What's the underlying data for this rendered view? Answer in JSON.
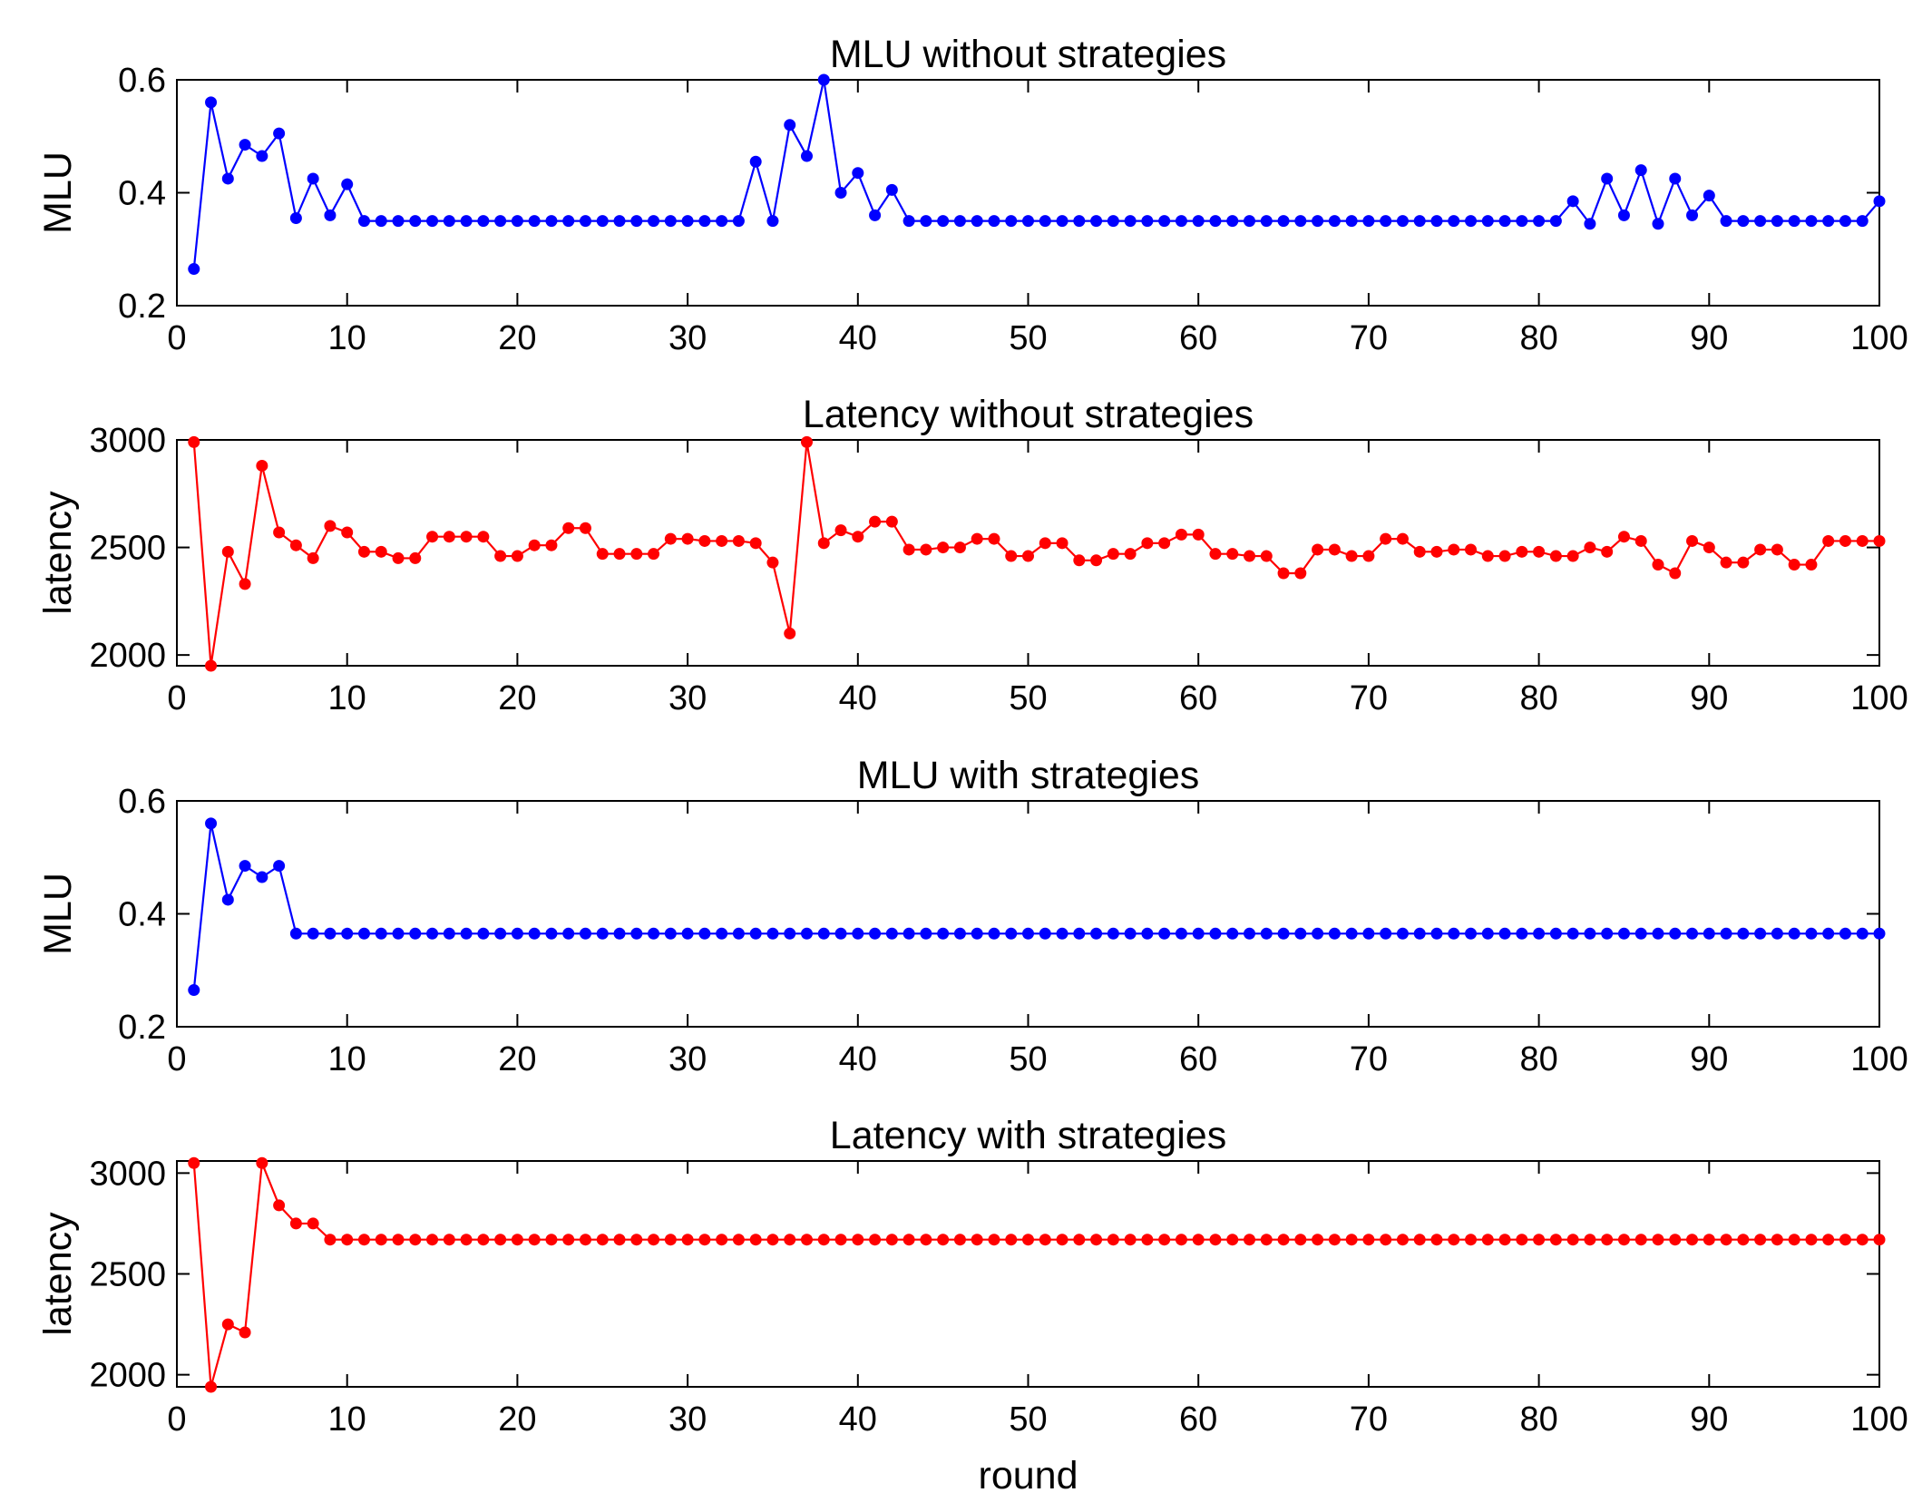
{
  "chart_data": [
    {
      "type": "line",
      "title": "MLU without strategies",
      "xlabel": "",
      "ylabel": "MLU",
      "xlim": [
        0,
        100
      ],
      "ylim": [
        0.2,
        0.6
      ],
      "xticks": [
        0,
        10,
        20,
        30,
        40,
        50,
        60,
        70,
        80,
        90,
        100
      ],
      "yticks": [
        0.2,
        0.4,
        0.6
      ],
      "grid": false,
      "series": [
        {
          "color": "#0000ff",
          "marker": "dot",
          "x": [
            1,
            2,
            3,
            4,
            5,
            6,
            7,
            8,
            9,
            10,
            11,
            12,
            13,
            14,
            15,
            16,
            17,
            18,
            19,
            20,
            21,
            22,
            23,
            24,
            25,
            26,
            27,
            28,
            29,
            30,
            31,
            32,
            33,
            34,
            35,
            36,
            37,
            38,
            39,
            40,
            41,
            42,
            43,
            44,
            45,
            46,
            47,
            48,
            49,
            50,
            51,
            52,
            53,
            54,
            55,
            56,
            57,
            58,
            59,
            60,
            61,
            62,
            63,
            64,
            65,
            66,
            67,
            68,
            69,
            70,
            71,
            72,
            73,
            74,
            75,
            76,
            77,
            78,
            79,
            80,
            81,
            82,
            83,
            84,
            85,
            86,
            87,
            88,
            89,
            90,
            91,
            92,
            93,
            94,
            95,
            96,
            97,
            98,
            99,
            100
          ],
          "y": [
            0.265,
            0.56,
            0.425,
            0.485,
            0.465,
            0.505,
            0.355,
            0.425,
            0.36,
            0.415,
            0.35,
            0.35,
            0.35,
            0.35,
            0.35,
            0.35,
            0.35,
            0.35,
            0.35,
            0.35,
            0.35,
            0.35,
            0.35,
            0.35,
            0.35,
            0.35,
            0.35,
            0.35,
            0.35,
            0.35,
            0.35,
            0.35,
            0.35,
            0.455,
            0.35,
            0.52,
            0.465,
            0.6,
            0.4,
            0.435,
            0.36,
            0.405,
            0.35,
            0.35,
            0.35,
            0.35,
            0.35,
            0.35,
            0.35,
            0.35,
            0.35,
            0.35,
            0.35,
            0.35,
            0.35,
            0.35,
            0.35,
            0.35,
            0.35,
            0.35,
            0.35,
            0.35,
            0.35,
            0.35,
            0.35,
            0.35,
            0.35,
            0.35,
            0.35,
            0.35,
            0.35,
            0.35,
            0.35,
            0.35,
            0.35,
            0.35,
            0.35,
            0.35,
            0.35,
            0.35,
            0.35,
            0.385,
            0.345,
            0.425,
            0.36,
            0.44,
            0.345,
            0.425,
            0.36,
            0.395,
            0.35,
            0.35,
            0.35,
            0.35,
            0.35,
            0.35,
            0.35,
            0.35,
            0.35,
            0.385
          ]
        }
      ]
    },
    {
      "type": "line",
      "title": "Latency without strategies",
      "xlabel": "",
      "ylabel": "latency",
      "xlim": [
        0,
        100
      ],
      "ylim": [
        1950,
        3000
      ],
      "xticks": [
        0,
        10,
        20,
        30,
        40,
        50,
        60,
        70,
        80,
        90,
        100
      ],
      "yticks": [
        2000,
        2500,
        3000
      ],
      "grid": false,
      "series": [
        {
          "color": "#ff0000",
          "marker": "dot",
          "x": [
            1,
            2,
            3,
            4,
            5,
            6,
            7,
            8,
            9,
            10,
            11,
            12,
            13,
            14,
            15,
            16,
            17,
            18,
            19,
            20,
            21,
            22,
            23,
            24,
            25,
            26,
            27,
            28,
            29,
            30,
            31,
            32,
            33,
            34,
            35,
            36,
            37,
            38,
            39,
            40,
            41,
            42,
            43,
            44,
            45,
            46,
            47,
            48,
            49,
            50,
            51,
            52,
            53,
            54,
            55,
            56,
            57,
            58,
            59,
            60,
            61,
            62,
            63,
            64,
            65,
            66,
            67,
            68,
            69,
            70,
            71,
            72,
            73,
            74,
            75,
            76,
            77,
            78,
            79,
            80,
            81,
            82,
            83,
            84,
            85,
            86,
            87,
            88,
            89,
            90,
            91,
            92,
            93,
            94,
            95,
            96,
            97,
            98,
            99,
            100
          ],
          "y": [
            2990,
            1950,
            2480,
            2330,
            2880,
            2570,
            2510,
            2450,
            2600,
            2570,
            2480,
            2480,
            2450,
            2450,
            2550,
            2550,
            2550,
            2550,
            2460,
            2460,
            2510,
            2510,
            2590,
            2590,
            2470,
            2470,
            2470,
            2470,
            2540,
            2540,
            2530,
            2530,
            2530,
            2520,
            2430,
            2100,
            2990,
            2520,
            2580,
            2550,
            2620,
            2620,
            2490,
            2490,
            2500,
            2500,
            2540,
            2540,
            2460,
            2460,
            2520,
            2520,
            2440,
            2440,
            2470,
            2470,
            2520,
            2520,
            2560,
            2560,
            2470,
            2470,
            2460,
            2460,
            2380,
            2380,
            2490,
            2490,
            2460,
            2460,
            2540,
            2540,
            2480,
            2480,
            2490,
            2490,
            2460,
            2460,
            2480,
            2480,
            2460,
            2460,
            2500,
            2480,
            2550,
            2530,
            2420,
            2380,
            2530,
            2500,
            2430,
            2430,
            2490,
            2490,
            2420,
            2420,
            2530,
            2530,
            2530,
            2530
          ]
        }
      ]
    },
    {
      "type": "line",
      "title": "MLU with strategies",
      "xlabel": "",
      "ylabel": "MLU",
      "xlim": [
        0,
        100
      ],
      "ylim": [
        0.2,
        0.6
      ],
      "xticks": [
        0,
        10,
        20,
        30,
        40,
        50,
        60,
        70,
        80,
        90,
        100
      ],
      "yticks": [
        0.2,
        0.4,
        0.6
      ],
      "grid": false,
      "series": [
        {
          "color": "#0000ff",
          "marker": "dot",
          "x": [
            1,
            2,
            3,
            4,
            5,
            6,
            7,
            8,
            9,
            10,
            11,
            12,
            13,
            14,
            15,
            16,
            17,
            18,
            19,
            20,
            21,
            22,
            23,
            24,
            25,
            26,
            27,
            28,
            29,
            30,
            31,
            32,
            33,
            34,
            35,
            36,
            37,
            38,
            39,
            40,
            41,
            42,
            43,
            44,
            45,
            46,
            47,
            48,
            49,
            50,
            51,
            52,
            53,
            54,
            55,
            56,
            57,
            58,
            59,
            60,
            61,
            62,
            63,
            64,
            65,
            66,
            67,
            68,
            69,
            70,
            71,
            72,
            73,
            74,
            75,
            76,
            77,
            78,
            79,
            80,
            81,
            82,
            83,
            84,
            85,
            86,
            87,
            88,
            89,
            90,
            91,
            92,
            93,
            94,
            95,
            96,
            97,
            98,
            99,
            100
          ],
          "y": [
            0.265,
            0.56,
            0.425,
            0.485,
            0.465,
            0.485,
            0.365,
            0.365,
            0.365,
            0.365,
            0.365,
            0.365,
            0.365,
            0.365,
            0.365,
            0.365,
            0.365,
            0.365,
            0.365,
            0.365,
            0.365,
            0.365,
            0.365,
            0.365,
            0.365,
            0.365,
            0.365,
            0.365,
            0.365,
            0.365,
            0.365,
            0.365,
            0.365,
            0.365,
            0.365,
            0.365,
            0.365,
            0.365,
            0.365,
            0.365,
            0.365,
            0.365,
            0.365,
            0.365,
            0.365,
            0.365,
            0.365,
            0.365,
            0.365,
            0.365,
            0.365,
            0.365,
            0.365,
            0.365,
            0.365,
            0.365,
            0.365,
            0.365,
            0.365,
            0.365,
            0.365,
            0.365,
            0.365,
            0.365,
            0.365,
            0.365,
            0.365,
            0.365,
            0.365,
            0.365,
            0.365,
            0.365,
            0.365,
            0.365,
            0.365,
            0.365,
            0.365,
            0.365,
            0.365,
            0.365,
            0.365,
            0.365,
            0.365,
            0.365,
            0.365,
            0.365,
            0.365,
            0.365,
            0.365,
            0.365,
            0.365,
            0.365,
            0.365,
            0.365,
            0.365,
            0.365,
            0.365,
            0.365,
            0.365,
            0.365
          ]
        }
      ]
    },
    {
      "type": "line",
      "title": "Latency with strategies",
      "xlabel": "round",
      "ylabel": "latency",
      "xlim": [
        0,
        100
      ],
      "ylim": [
        1940,
        3060
      ],
      "xticks": [
        0,
        10,
        20,
        30,
        40,
        50,
        60,
        70,
        80,
        90,
        100
      ],
      "yticks": [
        2000,
        2500,
        3000
      ],
      "grid": false,
      "series": [
        {
          "color": "#ff0000",
          "marker": "dot",
          "x": [
            1,
            2,
            3,
            4,
            5,
            6,
            7,
            8,
            9,
            10,
            11,
            12,
            13,
            14,
            15,
            16,
            17,
            18,
            19,
            20,
            21,
            22,
            23,
            24,
            25,
            26,
            27,
            28,
            29,
            30,
            31,
            32,
            33,
            34,
            35,
            36,
            37,
            38,
            39,
            40,
            41,
            42,
            43,
            44,
            45,
            46,
            47,
            48,
            49,
            50,
            51,
            52,
            53,
            54,
            55,
            56,
            57,
            58,
            59,
            60,
            61,
            62,
            63,
            64,
            65,
            66,
            67,
            68,
            69,
            70,
            71,
            72,
            73,
            74,
            75,
            76,
            77,
            78,
            79,
            80,
            81,
            82,
            83,
            84,
            85,
            86,
            87,
            88,
            89,
            90,
            91,
            92,
            93,
            94,
            95,
            96,
            97,
            98,
            99,
            100
          ],
          "y": [
            3050,
            1940,
            2250,
            2210,
            3050,
            2840,
            2750,
            2750,
            2670,
            2670,
            2670,
            2670,
            2670,
            2670,
            2670,
            2670,
            2670,
            2670,
            2670,
            2670,
            2670,
            2670,
            2670,
            2670,
            2670,
            2670,
            2670,
            2670,
            2670,
            2670,
            2670,
            2670,
            2670,
            2670,
            2670,
            2670,
            2670,
            2670,
            2670,
            2670,
            2670,
            2670,
            2670,
            2670,
            2670,
            2670,
            2670,
            2670,
            2670,
            2670,
            2670,
            2670,
            2670,
            2670,
            2670,
            2670,
            2670,
            2670,
            2670,
            2670,
            2670,
            2670,
            2670,
            2670,
            2670,
            2670,
            2670,
            2670,
            2670,
            2670,
            2670,
            2670,
            2670,
            2670,
            2670,
            2670,
            2670,
            2670,
            2670,
            2670,
            2670,
            2670,
            2670,
            2670,
            2670,
            2670,
            2670,
            2670,
            2670,
            2670,
            2670,
            2670,
            2670,
            2670,
            2670,
            2670,
            2670,
            2670,
            2670,
            2670
          ]
        }
      ]
    }
  ]
}
